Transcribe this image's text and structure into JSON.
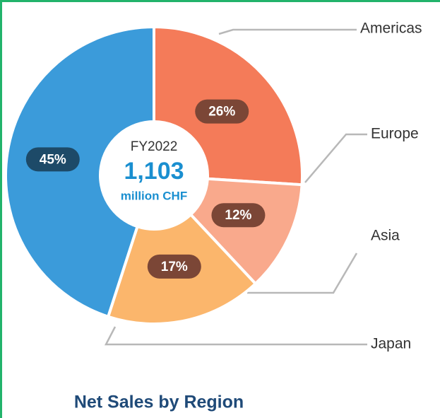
{
  "chart_data": {
    "type": "donut",
    "title": "Net Sales by Region",
    "center_text": [
      "FY2022",
      "1,103",
      "million CHF"
    ],
    "categories": [
      "Americas",
      "Europe",
      "Asia",
      "Japan"
    ],
    "values": [
      26,
      12,
      17,
      45
    ],
    "value_labels": [
      "26%",
      "12%",
      "17%",
      "45%"
    ],
    "colors": [
      "#f47b59",
      "#f9a98c",
      "#fbb66c",
      "#3b9bda"
    ]
  }
}
